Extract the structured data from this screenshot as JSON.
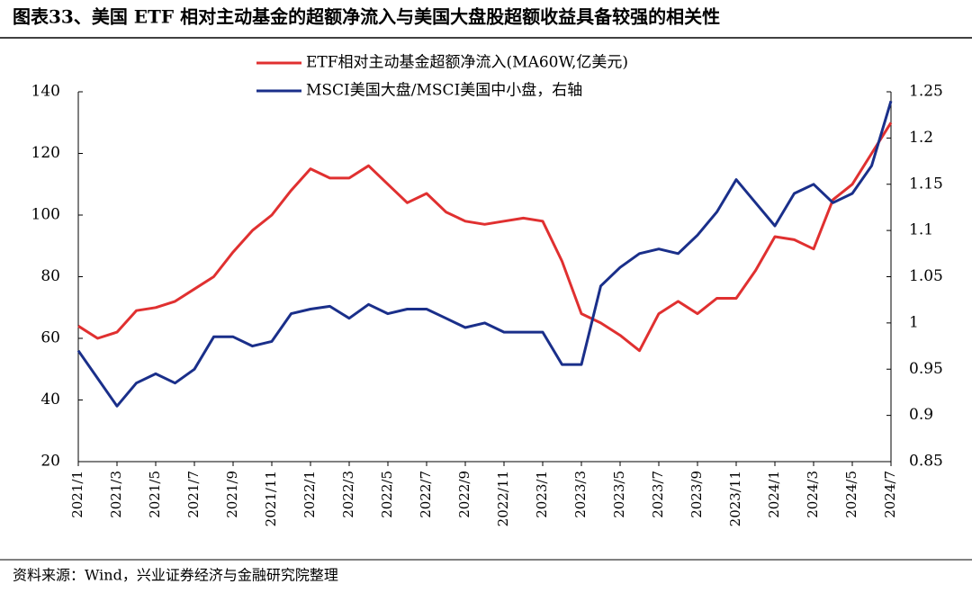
{
  "chart_data": {
    "type": "line",
    "title": "图表33、美国 ETF 相对主动基金的超额净流入与美国大盘股超额收益具备较强的相关性",
    "note": "资料来源：Wind，兴业证券经济与金融研究院整理",
    "categories": [
      "2021/1",
      null,
      "2021/3",
      null,
      "2021/5",
      null,
      "2021/7",
      null,
      "2021/9",
      null,
      "2021/11",
      null,
      "2022/1",
      null,
      "2022/3",
      null,
      "2022/5",
      null,
      "2022/7",
      null,
      "2022/9",
      null,
      "2022/11",
      null,
      "2023/1",
      null,
      "2023/3",
      null,
      "2023/5",
      null,
      "2023/7",
      null,
      "2023/9",
      null,
      "2023/11",
      null,
      "2024/1",
      null,
      "2024/3",
      null,
      "2024/5",
      null,
      "2024/7"
    ],
    "series": [
      {
        "name": "ETF相对主动基金超额净流入(MA60W,亿美元)",
        "color": "#e03030",
        "values": [
          64,
          60,
          62,
          69,
          70,
          72,
          76,
          80,
          88,
          95,
          100,
          108,
          115,
          112,
          112,
          116,
          110,
          104,
          107,
          101,
          98,
          97,
          98,
          99,
          98,
          85,
          68,
          65,
          61,
          56,
          68,
          72,
          68,
          73,
          73,
          82,
          93,
          92,
          89,
          105,
          110,
          120,
          130
        ]
      },
      {
        "name": "MSCI美国大盘/MSCI美国中小盘，右轴",
        "color": "#1a2f8a",
        "axis": "y2",
        "values": [
          0.97,
          0.94,
          0.91,
          0.935,
          0.945,
          0.935,
          0.95,
          0.985,
          0.985,
          0.975,
          0.98,
          1.01,
          1.015,
          1.018,
          1.005,
          1.02,
          1.01,
          1.015,
          1.015,
          1.005,
          0.995,
          1.0,
          0.99,
          0.99,
          0.99,
          0.955,
          0.955,
          1.04,
          1.06,
          1.075,
          1.08,
          1.075,
          1.095,
          1.12,
          1.155,
          1.13,
          1.105,
          1.14,
          1.15,
          1.13,
          1.14,
          1.17,
          1.24
        ]
      }
    ],
    "ylim": [
      20,
      140
    ],
    "yticks": [
      20,
      40,
      60,
      80,
      100,
      120,
      140
    ],
    "y2lim": [
      0.85,
      1.25
    ],
    "y2ticks": [
      0.85,
      0.9,
      0.95,
      1,
      1.05,
      1.1,
      1.15,
      1.2,
      1.25
    ]
  }
}
